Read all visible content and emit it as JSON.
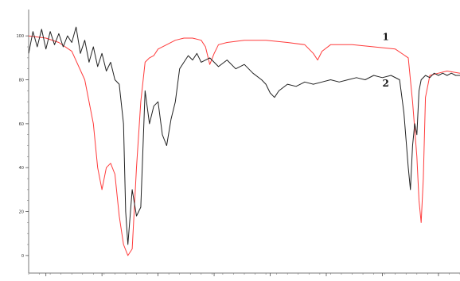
{
  "chart_data": {
    "type": "line",
    "title": "",
    "xlabel": "",
    "ylabel": "",
    "xlim": [
      0,
      100
    ],
    "ylim": [
      -8,
      112
    ],
    "grid": false,
    "legend": "none",
    "yticks": [
      "0",
      "20",
      "40",
      "60",
      "80",
      "100"
    ],
    "ytick_values": [
      0,
      20,
      40,
      60,
      80,
      100
    ],
    "xticks": [
      "",
      "",
      "",
      "",
      "",
      "",
      "",
      ""
    ],
    "xtick_values": [
      4,
      17,
      30,
      43,
      56,
      69,
      82,
      95
    ],
    "series": [
      {
        "name": "1",
        "color": "#ff3b3b",
        "x": [
          0,
          4,
          7,
          10,
          13,
          15,
          16,
          17,
          18,
          19,
          20,
          21,
          22,
          23,
          24,
          25,
          26,
          27,
          28,
          29,
          30,
          32,
          34,
          36,
          38,
          40,
          41,
          42,
          43,
          44,
          46,
          50,
          55,
          60,
          64,
          66,
          67,
          68,
          70,
          75,
          80,
          85,
          88,
          89,
          90,
          90.5,
          91,
          91.5,
          92,
          93,
          95,
          97,
          100
        ],
        "y": [
          100,
          99,
          97,
          93,
          80,
          60,
          40,
          30,
          40,
          42,
          37,
          18,
          5,
          0,
          3,
          40,
          70,
          88,
          90,
          91,
          94,
          96,
          98,
          99,
          99,
          98,
          95,
          87,
          92,
          96,
          97,
          98,
          98,
          97,
          96,
          92,
          89,
          93,
          96,
          96,
          95,
          94,
          90,
          70,
          45,
          25,
          15,
          35,
          72,
          82,
          83,
          84,
          83
        ]
      },
      {
        "name": "2",
        "color": "#222222",
        "x": [
          0,
          1,
          2,
          3,
          4,
          5,
          6,
          7,
          8,
          9,
          10,
          11,
          12,
          13,
          14,
          15,
          16,
          17,
          18,
          19,
          20,
          21,
          22,
          22.5,
          23,
          24,
          25,
          26,
          27,
          28,
          29,
          30,
          31,
          32,
          33,
          34,
          35,
          36,
          37,
          38,
          39,
          40,
          42,
          44,
          46,
          48,
          50,
          52,
          54,
          55,
          56,
          57,
          58,
          60,
          62,
          64,
          66,
          68,
          70,
          72,
          74,
          76,
          78,
          80,
          82,
          84,
          86,
          87,
          88,
          88.5,
          89,
          89.5,
          90,
          90.5,
          91,
          92,
          93,
          94,
          95,
          96,
          97,
          98,
          99,
          100
        ],
        "y": [
          92,
          102,
          95,
          103,
          94,
          102,
          96,
          101,
          95,
          100,
          97,
          104,
          92,
          98,
          88,
          95,
          86,
          92,
          84,
          88,
          80,
          78,
          60,
          20,
          5,
          30,
          18,
          22,
          75,
          60,
          68,
          70,
          55,
          50,
          62,
          70,
          85,
          88,
          91,
          89,
          92,
          88,
          90,
          86,
          89,
          85,
          87,
          83,
          80,
          78,
          74,
          72,
          75,
          78,
          77,
          79,
          78,
          79,
          80,
          79,
          80,
          81,
          80,
          82,
          81,
          82,
          80,
          65,
          40,
          30,
          50,
          60,
          55,
          75,
          80,
          82,
          81,
          83,
          82,
          83,
          82,
          83,
          82,
          82
        ]
      }
    ],
    "annotations": [
      {
        "text": "1",
        "x": 82,
        "y": 98
      },
      {
        "text": "2",
        "x": 82,
        "y": 77
      }
    ]
  }
}
